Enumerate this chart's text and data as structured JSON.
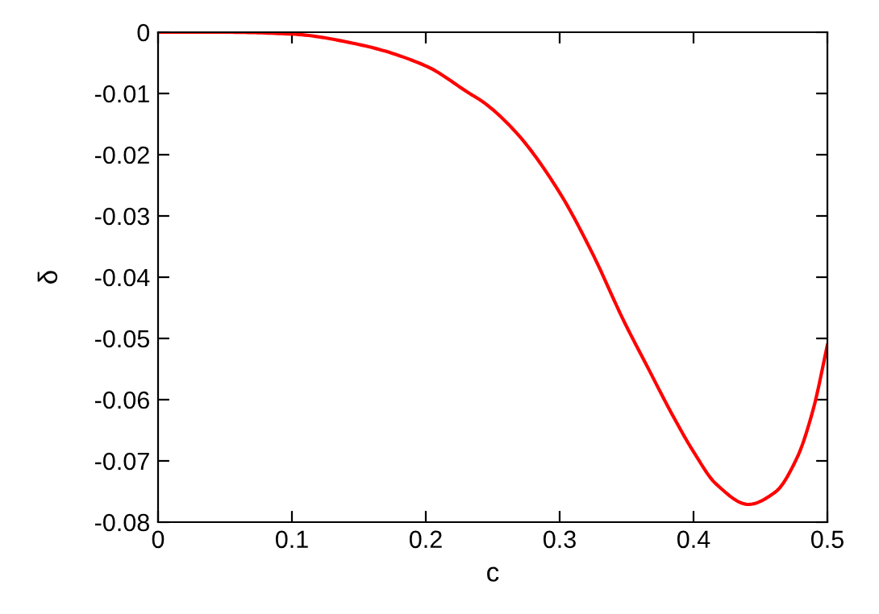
{
  "chart_data": {
    "type": "line",
    "xlabel": "c",
    "ylabel": "δ",
    "x": [
      0,
      0.05,
      0.1,
      0.15,
      0.2,
      0.232,
      0.2435,
      0.268,
      0.3,
      0.324,
      0.3485,
      0.365,
      0.385,
      0.4,
      0.417,
      0.441,
      0.461,
      0.4775,
      0.4895,
      0.5
    ],
    "series": [
      {
        "color": "#ff0000",
        "values": [
          0,
          0,
          -0.0003,
          -0.002,
          -0.0055,
          -0.0099,
          -0.0115,
          -0.0165,
          -0.0262,
          -0.0359,
          -0.0474,
          -0.0544,
          -0.0628,
          -0.0685,
          -0.0738,
          -0.0771,
          -0.0751,
          -0.0694,
          -0.0615,
          -0.0511
        ]
      }
    ],
    "xlim": [
      0,
      0.5
    ],
    "ylim": [
      -0.08,
      0
    ],
    "xticks": [
      0,
      0.1,
      0.2,
      0.3,
      0.4,
      0.5
    ],
    "yticks": [
      0,
      -0.01,
      -0.02,
      -0.03,
      -0.04,
      -0.05,
      -0.06,
      -0.07,
      -0.08
    ],
    "grid": false,
    "legend": false,
    "line_style": "solid"
  }
}
